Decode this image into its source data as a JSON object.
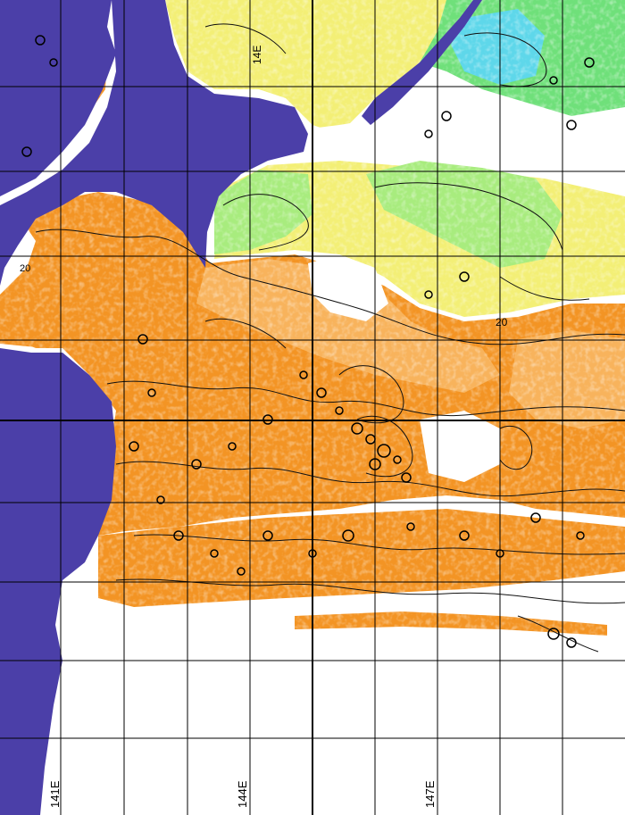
{
  "map": {
    "longitude_labels": [
      "141E",
      "144E",
      "147E"
    ],
    "inline_labels": [
      "14E",
      "20",
      "20"
    ],
    "colors": {
      "land": "#4b3fa8",
      "no_data": "#ffffff",
      "warm_orange": "#f39424",
      "light_orange": "#f8b35c",
      "yellow": "#f3ef76",
      "light_green": "#a8ec7e",
      "green": "#6fe07a",
      "cyan": "#5ed7ea",
      "contour": "#111111",
      "grid": "#000000"
    }
  }
}
